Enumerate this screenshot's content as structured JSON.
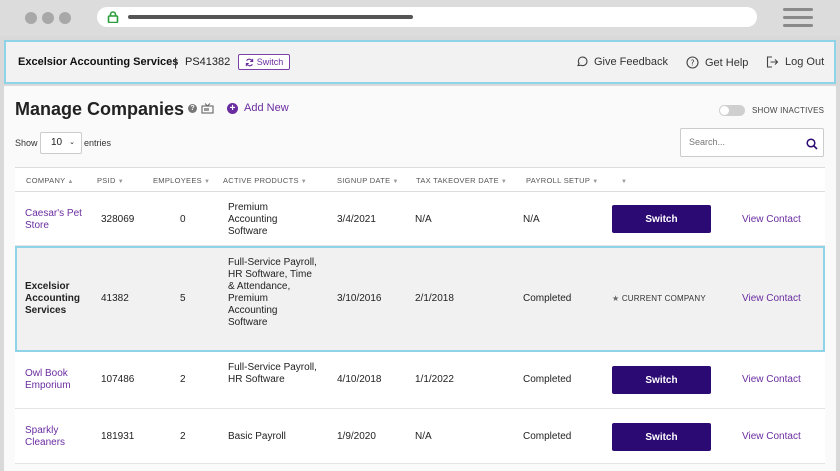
{
  "header": {
    "company_name": "Excelsior Accounting Services",
    "separator": "|",
    "psid": "PS41382",
    "switch_label": "Switch",
    "links": [
      {
        "label": "Give Feedback",
        "icon": "chat-bubble-icon"
      },
      {
        "label": "Get Help",
        "icon": "question-circle-icon"
      },
      {
        "label": "Log Out",
        "icon": "logout-icon"
      }
    ]
  },
  "page": {
    "title": "Manage Companies",
    "help": "?",
    "add_new": "Add New",
    "add_icon": "+",
    "show_inactives": "SHOW INACTIVES"
  },
  "controls": {
    "show": "Show",
    "entries_value": "10",
    "entries": "entries",
    "search_placeholder": "Search..."
  },
  "table": {
    "columns": [
      {
        "label": "COMPANY",
        "sort": "▲"
      },
      {
        "label": "PSID",
        "sort": "▼"
      },
      {
        "label": "EMPLOYEES",
        "sort": "▼"
      },
      {
        "label": "ACTIVE PRODUCTS",
        "sort": "▼"
      },
      {
        "label": "SIGNUP DATE",
        "sort": "▼"
      },
      {
        "label": "TAX TAKEOVER DATE",
        "sort": "▼"
      },
      {
        "label": "PAYROLL SETUP",
        "sort": "▼"
      },
      {
        "label": "",
        "sort": "▼"
      }
    ],
    "rows": [
      {
        "company": "Caesar's Pet Store",
        "psid": "328069",
        "employees": "0",
        "products": "Premium Accounting Software",
        "signup": "3/4/2021",
        "tax": "N/A",
        "payroll": "N/A",
        "action": "Switch",
        "contact": "View Contact"
      },
      {
        "company": "Excelsior Accounting Services",
        "psid": "41382",
        "employees": "5",
        "products": "Full-Service Payroll, HR Software, Time & Attendance, Premium Accounting Software",
        "signup": "3/10/2016",
        "tax": "2/1/2018",
        "payroll": "Completed",
        "current_star": "★",
        "current_label": "CURRENT COMPANY",
        "contact": "View Contact"
      },
      {
        "company": "Owl Book Emporium",
        "psid": "107486",
        "employees": "2",
        "products": "Full-Service Payroll, HR Software",
        "signup": "4/10/2018",
        "tax": "1/1/2022",
        "payroll": "Completed",
        "action": "Switch",
        "contact": "View Contact"
      },
      {
        "company": "Sparkly Cleaners",
        "psid": "181931",
        "employees": "2",
        "products": "Basic Payroll",
        "signup": "1/9/2020",
        "tax": "N/A",
        "payroll": "Completed",
        "action": "Switch",
        "contact": "View Contact"
      }
    ]
  },
  "colors": {
    "accent": "#6a2da0",
    "button": "#2c0a73",
    "highlight": "#8fd3e8"
  }
}
